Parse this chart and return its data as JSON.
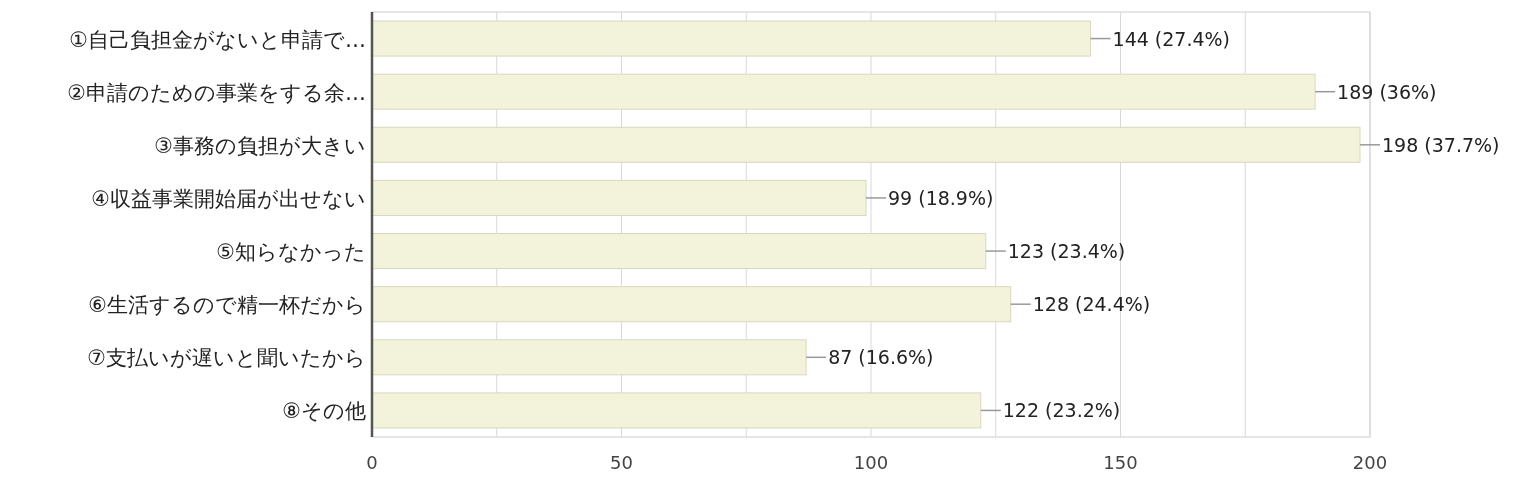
{
  "chart_data": {
    "type": "bar",
    "orientation": "horizontal",
    "categories": [
      "①自己負担金がないと申請で…",
      "②申請のための事業をする余…",
      "③事務の負担が大きい",
      "④収益事業開始届が出せない",
      "⑤知らなかった",
      "⑥生活するので精一杯だから",
      "⑦支払いが遅いと聞いたから",
      "⑧その他"
    ],
    "values": [
      144,
      189,
      198,
      99,
      123,
      128,
      87,
      122
    ],
    "value_labels": [
      "144 (27.4%)",
      "189 (36%)",
      "198 (37.7%)",
      "99 (18.9%)",
      "123 (23.4%)",
      "128 (24.4%)",
      "87 (16.6%)",
      "122 (23.2%)"
    ],
    "color": "#f3f3dc",
    "xlim": [
      0,
      200
    ],
    "xticks": [
      0,
      {
        "value": 25,
        "label": null
      },
      50,
      {
        "value": 75,
        "label": null
      },
      100,
      {
        "value": 125,
        "label": null
      },
      150,
      {
        "value": 175,
        "label": null
      },
      200
    ],
    "grid": "x"
  }
}
